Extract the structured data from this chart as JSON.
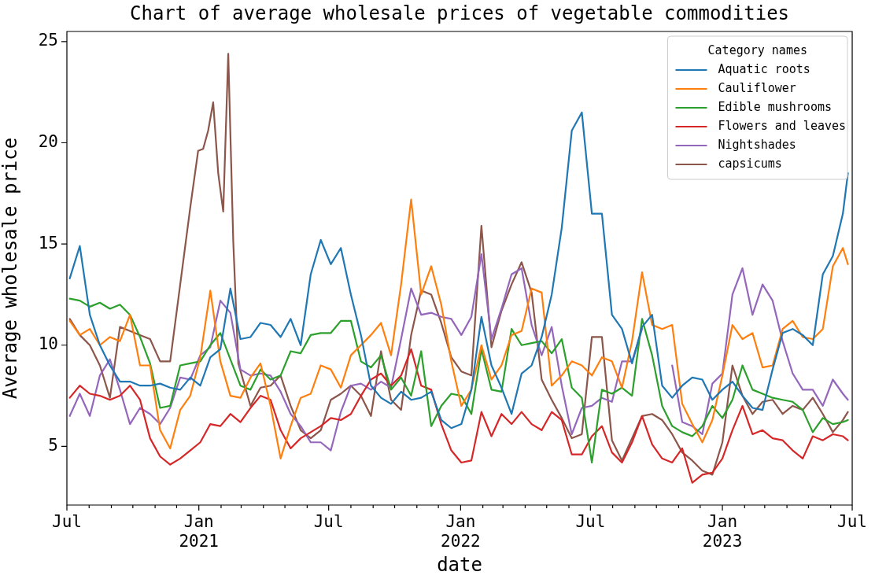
{
  "chart_data": {
    "type": "line",
    "title": "Chart of average wholesale prices of vegetable commodities",
    "xlabel": "date",
    "ylabel": "Average wholesale price",
    "legend_title": "Category names",
    "legend": "top right",
    "x": [
      "2020-07-05",
      "2020-07-19",
      "2020-08-02",
      "2020-08-16",
      "2020-08-30",
      "2020-09-13",
      "2020-09-27",
      "2020-10-11",
      "2020-10-25",
      "2020-11-08",
      "2020-11-22",
      "2020-12-06",
      "2020-12-20",
      "2021-01-03",
      "2021-01-17",
      "2021-01-31",
      "2021-02-14",
      "2021-02-28",
      "2021-03-14",
      "2021-03-28",
      "2021-04-11",
      "2021-04-25",
      "2021-05-09",
      "2021-05-23",
      "2021-06-06",
      "2021-06-20",
      "2021-07-04",
      "2021-07-18",
      "2021-08-01",
      "2021-08-15",
      "2021-08-29",
      "2021-09-12",
      "2021-09-26",
      "2021-10-10",
      "2021-10-24",
      "2021-11-07",
      "2021-11-21",
      "2021-12-05",
      "2021-12-19",
      "2022-01-02",
      "2022-01-16",
      "2022-01-30",
      "2022-02-13",
      "2022-02-27",
      "2022-03-13",
      "2022-03-27",
      "2022-04-10",
      "2022-04-24",
      "2022-05-08",
      "2022-05-22",
      "2022-06-05",
      "2022-06-19",
      "2022-07-03",
      "2022-07-17",
      "2022-07-31",
      "2022-08-14",
      "2022-08-28",
      "2022-09-11",
      "2022-09-25",
      "2022-10-09",
      "2022-10-23",
      "2022-11-06",
      "2022-11-20",
      "2022-12-04",
      "2022-12-18",
      "2023-01-01",
      "2023-01-15",
      "2023-01-29",
      "2023-02-12",
      "2023-02-26",
      "2023-03-12",
      "2023-03-26",
      "2023-04-09",
      "2023-04-23",
      "2023-05-07",
      "2023-05-21",
      "2023-06-04",
      "2023-06-18",
      "2023-06-25"
    ],
    "series": [
      {
        "name": "Aquatic roots",
        "color": "#1f77b4",
        "values": [
          13.3,
          14.9,
          11.5,
          10.0,
          9.0,
          8.2,
          8.2,
          8.0,
          8.0,
          8.1,
          7.9,
          7.8,
          8.4,
          8.0,
          9.4,
          9.8,
          12.8,
          10.3,
          10.4,
          11.1,
          11.0,
          10.4,
          11.3,
          10.0,
          13.5,
          15.2,
          14.0,
          14.8,
          12.5,
          10.5,
          8.0,
          7.4,
          7.1,
          7.7,
          7.3,
          7.4,
          7.7,
          6.3,
          5.9,
          6.1,
          7.8,
          11.4,
          9.0,
          7.9,
          6.6,
          8.6,
          9.0,
          10.4,
          12.5,
          15.8,
          20.6,
          21.5,
          16.5,
          16.5,
          11.5,
          10.8,
          9.1,
          10.9,
          11.5,
          8.0,
          7.4,
          8.0,
          8.4,
          8.3,
          7.3,
          7.8,
          8.2,
          7.5,
          6.9,
          6.8,
          8.8,
          10.6,
          10.8,
          10.5,
          10.0,
          13.5,
          14.4,
          16.5,
          18.5
        ]
      },
      {
        "name": "Cauliflower",
        "color": "#ff7f0e",
        "values": [
          11.2,
          10.5,
          10.8,
          10.0,
          10.4,
          10.2,
          11.5,
          9.0,
          9.0,
          5.8,
          4.9,
          6.8,
          7.5,
          9.4,
          12.7,
          9.2,
          7.5,
          7.4,
          8.4,
          9.1,
          7.0,
          4.4,
          6.0,
          7.4,
          7.6,
          9.0,
          8.8,
          7.9,
          9.5,
          10.0,
          10.5,
          11.1,
          9.5,
          13.0,
          17.2,
          12.5,
          13.9,
          12.0,
          9.2,
          7.0,
          7.8,
          10.0,
          8.3,
          9.0,
          10.5,
          10.7,
          12.8,
          12.6,
          8.0,
          8.5,
          9.2,
          9.0,
          8.5,
          9.4,
          9.2,
          7.9,
          10.2,
          13.6,
          11.0,
          10.8,
          11.0,
          7.1,
          6.1,
          5.2,
          6.3,
          8.5,
          11.0,
          10.3,
          10.6,
          8.9,
          9.0,
          10.8,
          11.2,
          10.4,
          10.3,
          10.8,
          13.9,
          14.8,
          14.0
        ]
      },
      {
        "name": "Edible mushrooms",
        "color": "#2ca02c",
        "values": [
          12.3,
          12.2,
          11.9,
          12.1,
          11.8,
          12.0,
          11.5,
          10.4,
          9.1,
          6.9,
          7.0,
          9.0,
          9.1,
          9.2,
          10.0,
          10.6,
          9.3,
          8.0,
          7.8,
          8.8,
          8.3,
          8.5,
          9.7,
          9.6,
          10.5,
          10.6,
          10.6,
          11.2,
          11.2,
          9.2,
          8.9,
          9.5,
          7.8,
          8.4,
          7.5,
          9.7,
          6.0,
          7.0,
          7.6,
          7.5,
          6.6,
          9.8,
          7.8,
          7.7,
          10.8,
          10.0,
          10.1,
          10.2,
          9.6,
          10.3,
          7.9,
          7.4,
          4.2,
          7.8,
          7.6,
          7.9,
          7.5,
          11.3,
          9.5,
          7.0,
          6.0,
          5.7,
          5.5,
          6.0,
          7.0,
          6.4,
          7.3,
          9.0,
          7.8,
          7.6,
          7.4,
          7.3,
          7.2,
          6.8,
          5.7,
          6.4,
          6.1,
          6.2,
          6.3
        ]
      },
      {
        "name": "Flowers and leaves",
        "color": "#d62728",
        "values": [
          7.4,
          8.0,
          7.6,
          7.5,
          7.3,
          7.5,
          8.0,
          7.3,
          5.4,
          4.5,
          4.1,
          4.4,
          4.8,
          5.2,
          6.1,
          6.0,
          6.6,
          6.2,
          6.9,
          7.5,
          7.3,
          5.8,
          4.9,
          5.4,
          5.7,
          6.0,
          6.4,
          6.3,
          6.6,
          7.5,
          8.3,
          8.6,
          8.0,
          8.5,
          9.8,
          8.0,
          7.8,
          6.1,
          4.8,
          4.2,
          4.3,
          6.7,
          5.5,
          6.6,
          6.1,
          6.7,
          6.1,
          5.8,
          6.7,
          6.3,
          4.6,
          4.6,
          5.5,
          6.0,
          4.7,
          4.2,
          5.2,
          6.5,
          5.1,
          4.4,
          4.2,
          4.9,
          3.2,
          3.6,
          3.7,
          4.4,
          5.8,
          7.0,
          5.6,
          5.8,
          5.4,
          5.3,
          4.8,
          4.4,
          5.5,
          5.3,
          5.6,
          5.5,
          5.3
        ]
      },
      {
        "name": "Nightshades",
        "color": "#9467bd",
        "values": [
          6.5,
          7.6,
          6.5,
          8.5,
          9.3,
          7.8,
          6.1,
          6.9,
          6.6,
          6.1,
          6.9,
          8.4,
          8.3,
          9.5,
          9.9,
          12.2,
          11.6,
          8.8,
          8.5,
          8.6,
          8.5,
          7.7,
          6.6,
          6.0,
          5.2,
          5.2,
          4.8,
          6.7,
          8.0,
          8.1,
          7.8,
          8.2,
          7.9,
          10.3,
          12.8,
          11.5,
          11.6,
          11.4,
          11.3,
          10.5,
          11.4,
          14.5,
          10.3,
          11.8,
          13.5,
          13.8,
          11.0,
          9.5,
          10.9,
          8.0,
          5.6,
          6.9,
          7.0,
          7.4,
          7.2,
          9.2,
          9.2,
          10.8,
          null,
          null,
          9.0,
          6.2,
          6.0,
          5.6,
          8.1,
          8.6,
          12.5,
          13.8,
          11.5,
          13.0,
          12.2,
          10.2,
          8.6,
          7.8,
          7.8,
          7.0,
          8.3,
          7.6,
          7.3
        ]
      },
      {
        "name": "capsicums",
        "color": "#8c564b",
        "x": [
          "2020-07-05",
          "2020-07-19",
          "2020-08-02",
          "2020-08-16",
          "2020-08-30",
          "2020-09-13",
          "2020-09-27",
          "2020-10-11",
          "2020-10-25",
          "2020-11-08",
          "2020-11-22",
          "2020-12-06",
          "2020-12-20",
          "2020-12-31",
          "2021-01-07",
          "2021-01-14",
          "2021-01-21",
          "2021-01-28",
          "2021-02-04",
          "2021-02-11",
          "2021-02-18",
          "2021-02-25",
          "2021-03-14",
          "2021-03-28",
          "2021-04-11",
          "2021-04-25",
          "2021-05-09",
          "2021-05-23",
          "2021-06-06",
          "2021-06-20",
          "2021-07-04",
          "2021-07-18",
          "2021-08-01",
          "2021-08-15",
          "2021-08-29",
          "2021-09-12",
          "2021-09-26",
          "2021-10-10",
          "2021-10-24",
          "2021-11-07",
          "2021-11-21",
          "2021-12-05",
          "2021-12-19",
          "2022-01-02",
          "2022-01-16",
          "2022-01-30",
          "2022-02-13",
          "2022-02-27",
          "2022-03-13",
          "2022-03-27",
          "2022-04-10",
          "2022-04-24",
          "2022-05-08",
          "2022-05-22",
          "2022-06-05",
          "2022-06-19",
          "2022-07-03",
          "2022-07-17",
          "2022-07-31",
          "2022-08-14",
          "2022-08-28",
          "2022-09-11",
          "2022-09-25",
          "2022-10-09",
          "2022-10-23",
          "2022-11-06",
          "2022-11-20",
          "2022-12-04",
          "2022-12-18",
          "2023-01-01",
          "2023-01-15",
          "2023-01-29",
          "2023-02-12",
          "2023-02-26",
          "2023-03-12",
          "2023-03-26",
          "2023-04-09",
          "2023-04-23",
          "2023-05-07",
          "2023-05-21",
          "2023-06-04",
          "2023-06-18",
          "2023-06-25"
        ],
        "values": [
          11.3,
          10.5,
          10.0,
          9.0,
          7.4,
          10.9,
          10.7,
          10.5,
          10.3,
          9.2,
          9.2,
          13.0,
          16.8,
          19.6,
          19.7,
          20.6,
          22.0,
          18.5,
          16.6,
          24.4,
          15.1,
          9.1,
          7.0,
          7.9,
          8.0,
          8.5,
          7.0,
          5.8,
          5.4,
          5.8,
          7.3,
          7.6,
          8.0,
          7.5,
          6.5,
          9.7,
          7.3,
          6.8,
          10.5,
          12.7,
          12.5,
          11.1,
          9.4,
          8.7,
          8.5,
          15.9,
          9.9,
          11.7,
          13.0,
          14.1,
          12.6,
          8.3,
          7.3,
          6.4,
          5.4,
          5.6,
          10.4,
          10.4,
          5.3,
          4.3,
          5.4,
          6.5,
          6.6,
          6.3,
          5.6,
          4.7,
          4.3,
          3.8,
          3.6,
          5.2,
          9.0,
          7.5,
          6.6,
          7.2,
          7.3,
          6.6,
          7.0,
          6.8,
          7.4,
          6.6,
          5.7,
          6.3,
          6.7
        ]
      }
    ],
    "xlim": [
      "2020-07",
      "2023-07"
    ],
    "xticks": [
      {
        "value": "2020-07",
        "label": "Jul"
      },
      {
        "value": "2020-08",
        "label": null
      },
      {
        "value": "2020-09",
        "label": null
      },
      {
        "value": "2020-10",
        "label": null
      },
      {
        "value": "2020-11",
        "label": null
      },
      {
        "value": "2020-12",
        "label": null
      },
      {
        "value": "2021-01",
        "label": "Jan\n2021"
      },
      {
        "value": "2021-02",
        "label": null
      },
      {
        "value": "2021-03",
        "label": null
      },
      {
        "value": "2021-04",
        "label": null
      },
      {
        "value": "2021-05",
        "label": null
      },
      {
        "value": "2021-06",
        "label": null
      },
      {
        "value": "2021-07",
        "label": "Jul"
      },
      {
        "value": "2021-08",
        "label": null
      },
      {
        "value": "2021-09",
        "label": null
      },
      {
        "value": "2021-10",
        "label": null
      },
      {
        "value": "2021-11",
        "label": null
      },
      {
        "value": "2021-12",
        "label": null
      },
      {
        "value": "2022-01",
        "label": "Jan\n2022"
      },
      {
        "value": "2022-02",
        "label": null
      },
      {
        "value": "2022-03",
        "label": null
      },
      {
        "value": "2022-04",
        "label": null
      },
      {
        "value": "2022-05",
        "label": null
      },
      {
        "value": "2022-06",
        "label": null
      },
      {
        "value": "2022-07",
        "label": "Jul"
      },
      {
        "value": "2022-08",
        "label": null
      },
      {
        "value": "2022-09",
        "label": null
      },
      {
        "value": "2022-10",
        "label": null
      },
      {
        "value": "2022-11",
        "label": null
      },
      {
        "value": "2022-12",
        "label": null
      },
      {
        "value": "2023-01",
        "label": "Jan\n2023"
      },
      {
        "value": "2023-02",
        "label": null
      },
      {
        "value": "2023-03",
        "label": null
      },
      {
        "value": "2023-04",
        "label": null
      },
      {
        "value": "2023-05",
        "label": null
      },
      {
        "value": "2023-06",
        "label": null
      },
      {
        "value": "2023-07",
        "label": "Jul"
      }
    ],
    "ylim": [
      2.1,
      25.5
    ],
    "yticks": [
      5,
      10,
      15,
      20,
      25
    ]
  }
}
